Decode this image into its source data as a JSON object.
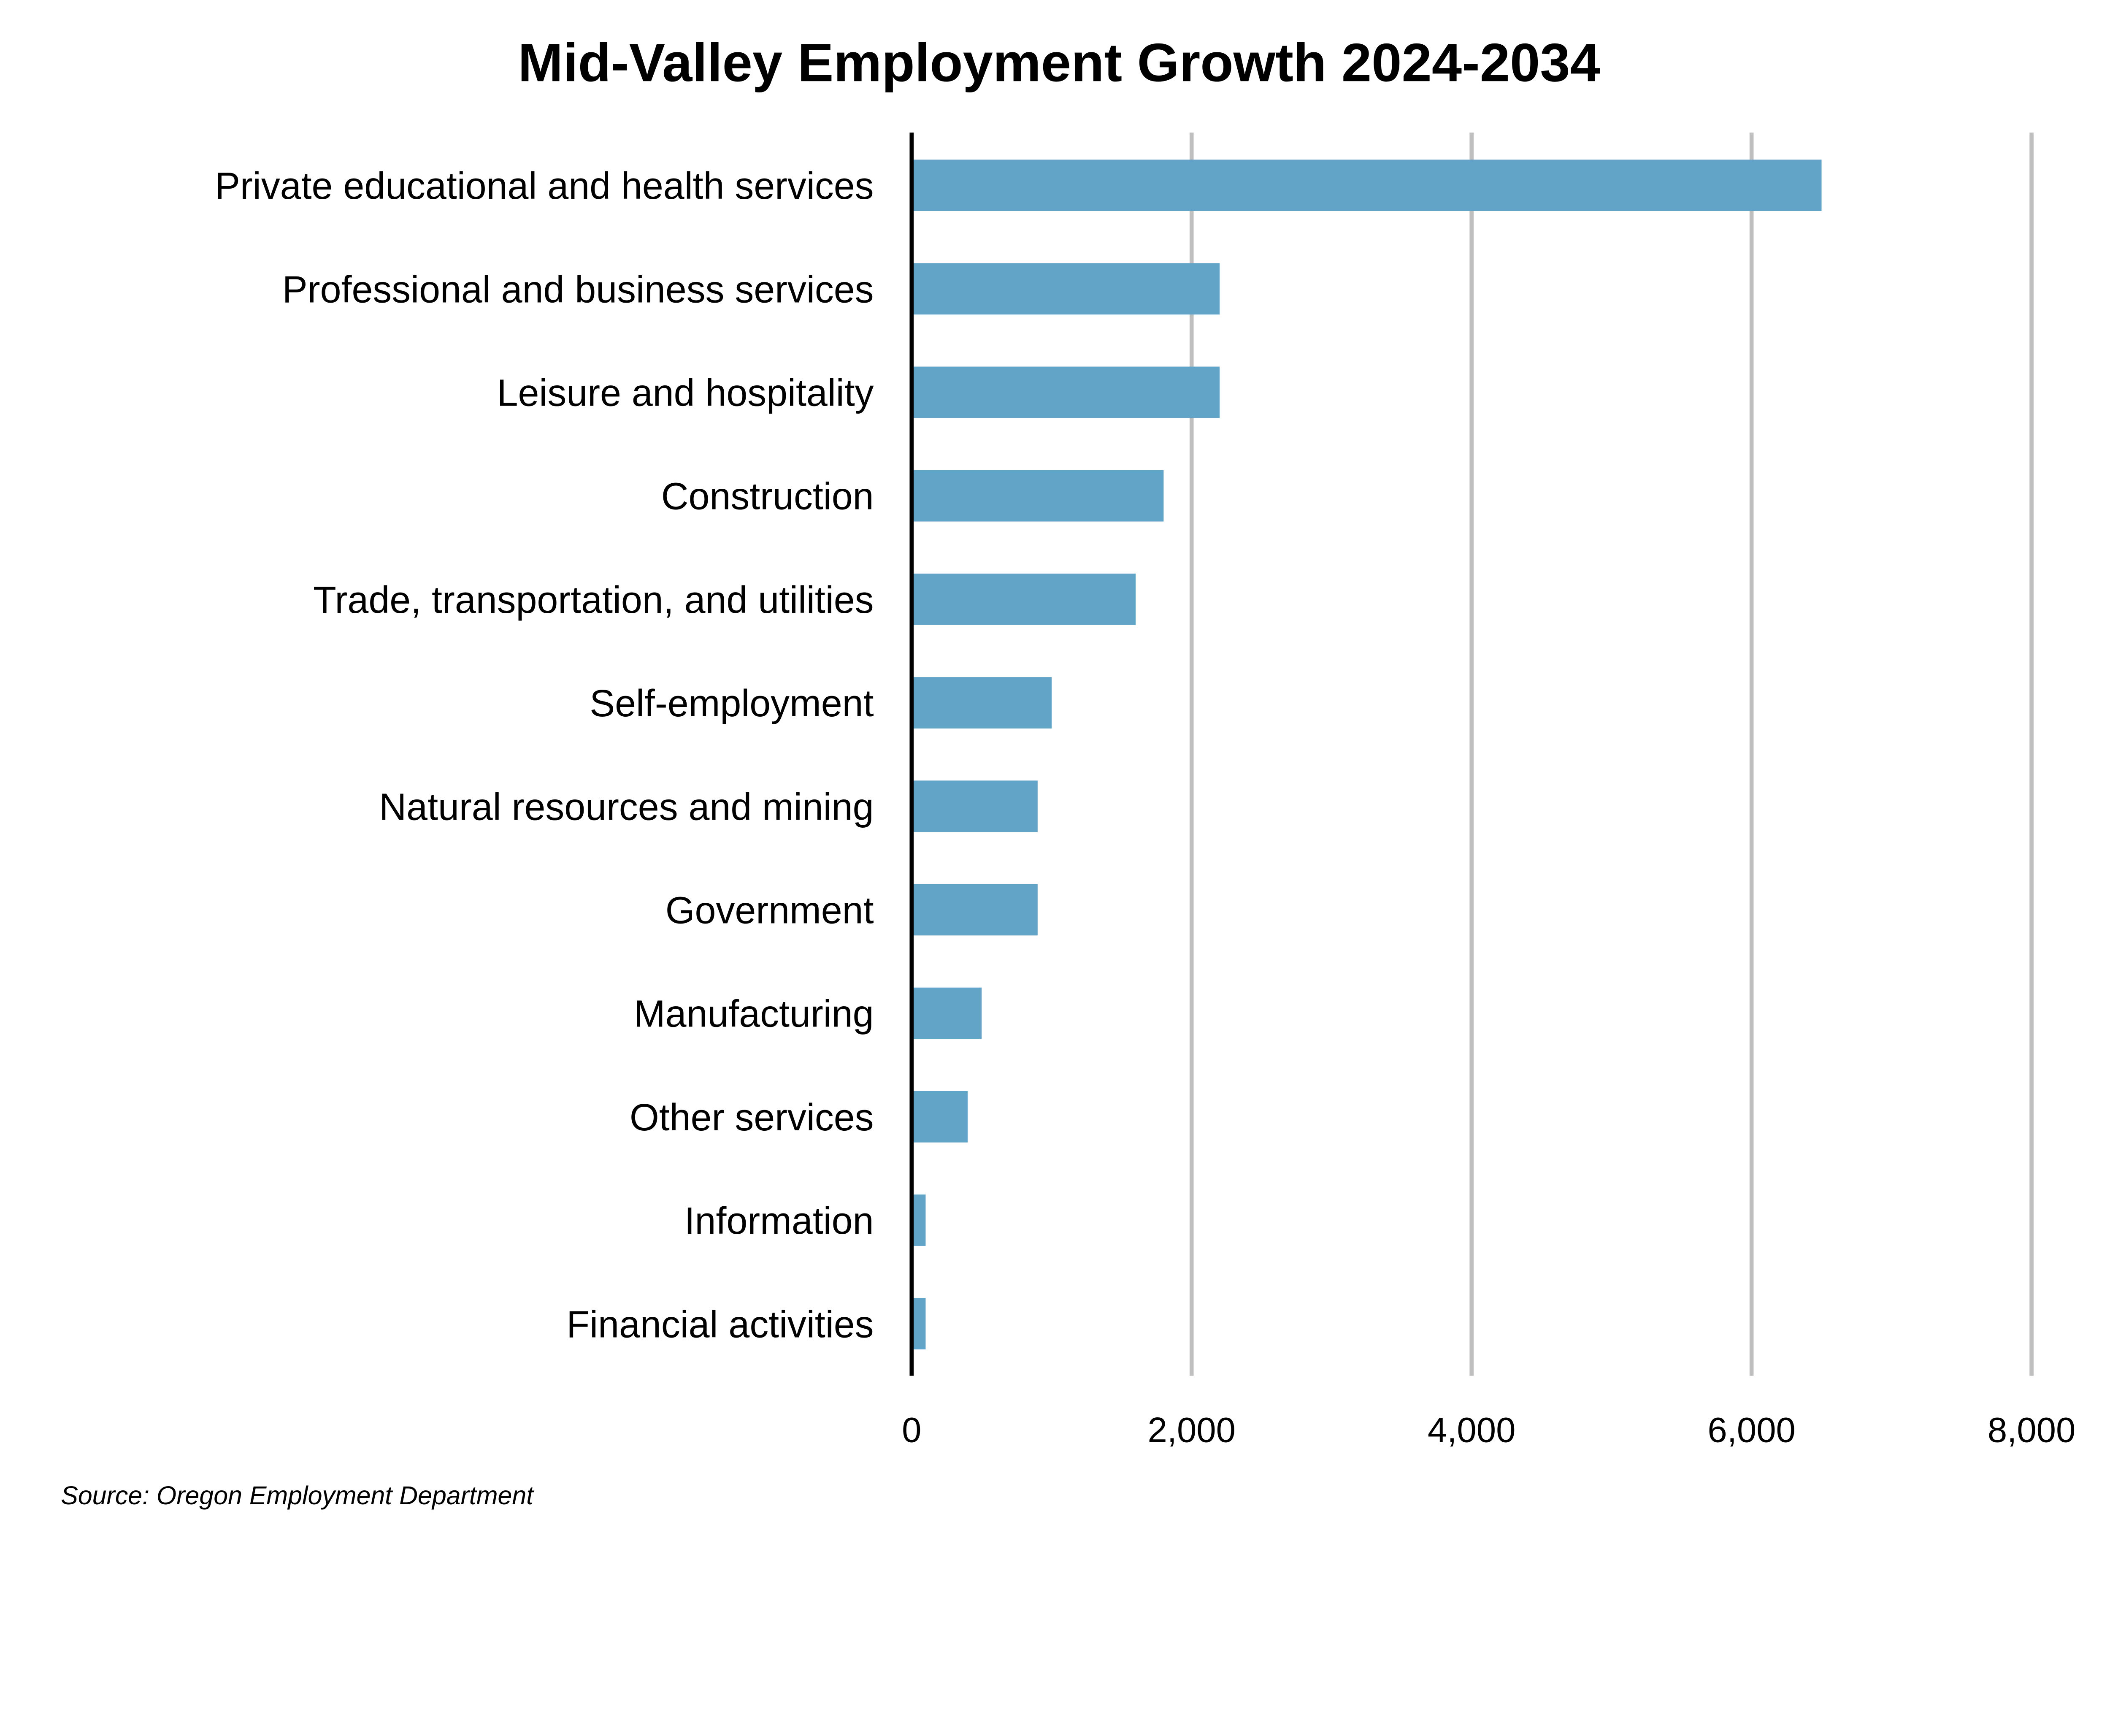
{
  "chart_data": {
    "type": "bar",
    "orientation": "horizontal",
    "title": "Mid-Valley Employment Growth 2024-2034",
    "xlabel": "",
    "ylabel": "",
    "categories": [
      "Private educational and health services",
      "Professional and business services",
      "Leisure and hospitality",
      "Construction",
      "Trade, transportation, and utilities",
      "Self-employment",
      "Natural resources and mining",
      "Government",
      "Manufacturing",
      "Other services",
      "Information",
      "Financial activities"
    ],
    "values": [
      6500,
      2200,
      2200,
      1800,
      1600,
      1000,
      900,
      900,
      500,
      400,
      100,
      100
    ],
    "xlim": [
      0,
      8000
    ],
    "xticks": [
      0,
      2000,
      4000,
      6000,
      8000
    ],
    "xtick_labels": [
      "0",
      "2,000",
      "4,000",
      "6,000",
      "8,000"
    ],
    "grid": "vertical",
    "bar_color": "#62a3c8",
    "grid_color": "#bfbfbf",
    "source": "Source: Oregon Employment Department"
  }
}
